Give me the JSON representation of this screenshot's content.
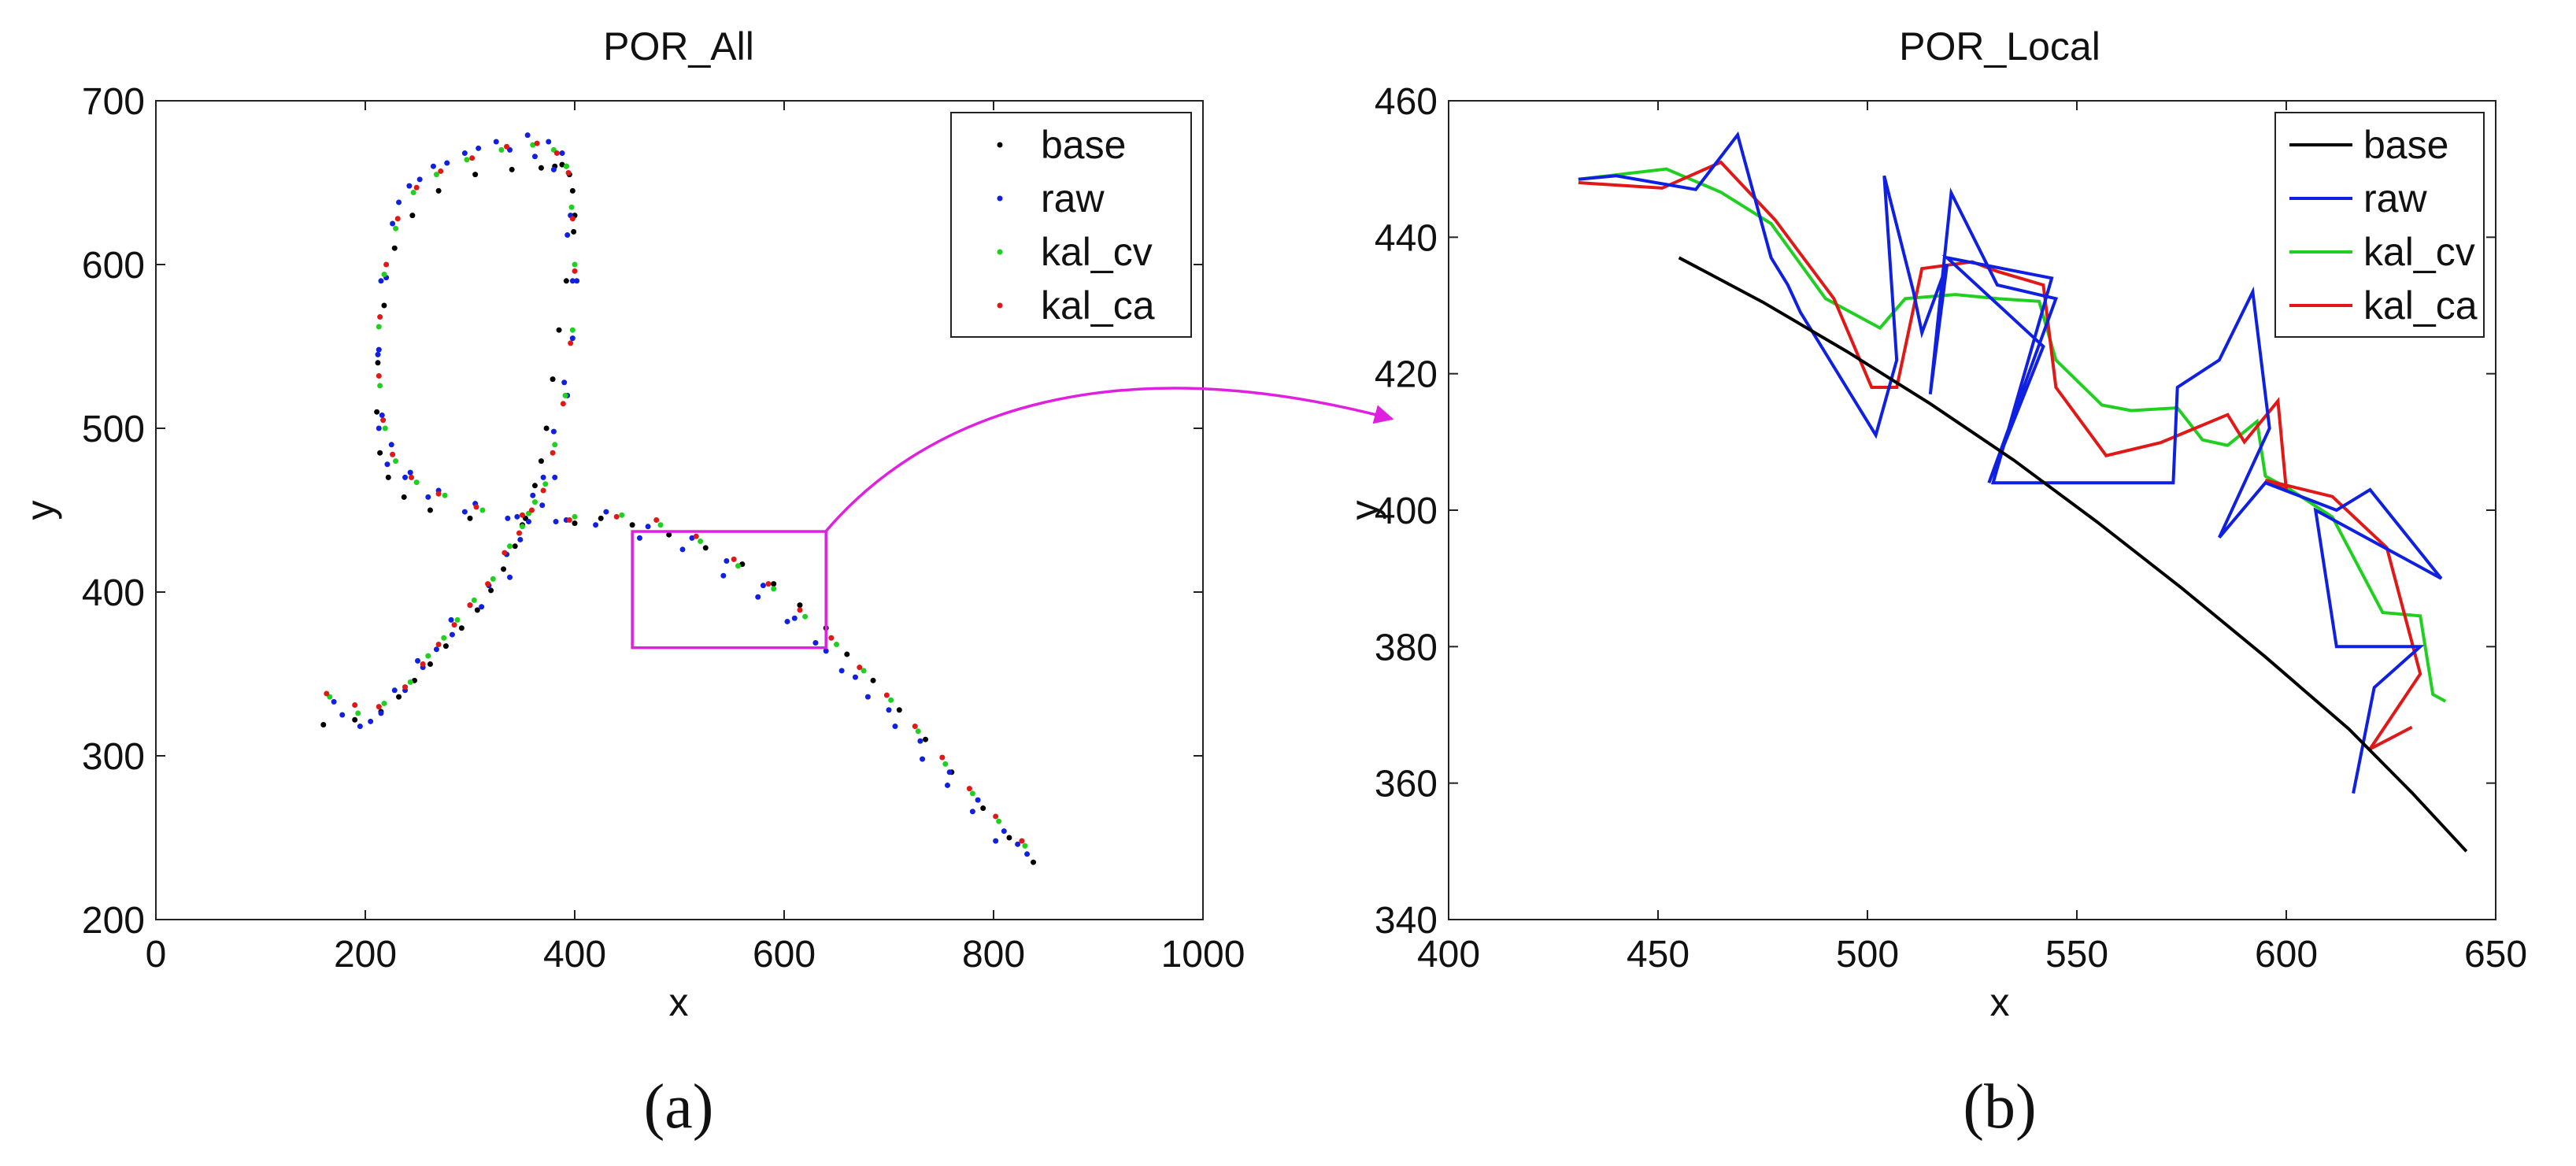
{
  "figure": {
    "panel_a_caption": "(a)",
    "panel_b_caption": "(b)",
    "zoom_color": "#e020e0"
  },
  "chart_data": [
    {
      "id": "por_all",
      "type": "scatter",
      "title": "POR_All",
      "xlabel": "x",
      "ylabel": "y",
      "xlim": [
        0,
        1000
      ],
      "ylim": [
        200,
        700
      ],
      "xticks": [
        0,
        200,
        400,
        600,
        800,
        1000
      ],
      "yticks": [
        200,
        300,
        400,
        500,
        600,
        700
      ],
      "grid": false,
      "legend_position": "top-right",
      "zoom_box": {
        "x": [
          455,
          640
        ],
        "y": [
          366,
          437
        ]
      },
      "series": [
        {
          "name": "base",
          "color": "#000000",
          "x": [
            160,
            190,
            215,
            232,
            247,
            262,
            277,
            292,
            307,
            320,
            332,
            343,
            353,
            362,
            368,
            373,
            379,
            385,
            392,
            399,
            400,
            398,
            395,
            392,
            388,
            381,
            368,
            340,
            305,
            270,
            245,
            228,
            218,
            212,
            211,
            214,
            222,
            237,
            262,
            300,
            350,
            400,
            425,
            455,
            490,
            525,
            560,
            590,
            615,
            640,
            660,
            685,
            710,
            735,
            760,
            790,
            815,
            838
          ],
          "y": [
            319,
            322,
            327,
            336,
            346,
            356,
            367,
            378,
            389,
            401,
            414,
            428,
            445,
            465,
            480,
            500,
            530,
            560,
            590,
            620,
            630,
            645,
            655,
            660,
            661,
            660,
            659,
            658,
            655,
            645,
            630,
            610,
            575,
            540,
            510,
            485,
            470,
            458,
            450,
            445,
            441,
            442,
            445,
            441,
            435,
            427,
            417,
            405,
            392,
            378,
            362,
            346,
            328,
            310,
            290,
            268,
            250,
            235
          ]
        },
        {
          "name": "raw",
          "color": "#1020e0",
          "x": [
            170,
            195,
            215,
            238,
            250,
            268,
            282,
            300,
            318,
            335,
            348,
            360,
            370,
            380,
            390,
            398,
            402,
            396,
            388,
            375,
            355,
            325,
            295,
            265,
            242,
            226,
            215,
            212,
            216,
            225,
            243,
            270,
            305,
            345,
            392,
            430,
            470,
            512,
            545,
            580,
            610,
            640,
            668,
            700,
            730,
            758,
            785,
            810,
            832,
            178,
            205,
            228,
            255,
            283,
            311,
            338,
            356,
            369,
            381,
            393,
            398,
            393,
            380,
            362,
            338,
            308,
            278,
            252,
            232,
            220,
            213,
            213,
            221,
            238,
            260,
            295,
            336,
            382,
            420,
            462,
            503,
            542,
            575,
            603,
            630,
            655,
            680,
            706,
            732,
            756,
            780,
            802,
            823
          ],
          "y": [
            333,
            318,
            326,
            340,
            358,
            365,
            383,
            392,
            404,
            423,
            432,
            459,
            470,
            498,
            528,
            555,
            590,
            630,
            668,
            675,
            679,
            675,
            668,
            660,
            648,
            625,
            590,
            545,
            508,
            490,
            473,
            462,
            454,
            446,
            444,
            449,
            440,
            433,
            419,
            404,
            384,
            364,
            348,
            328,
            309,
            290,
            273,
            254,
            240,
            325,
            321,
            340,
            354,
            374,
            391,
            409,
            443,
            453,
            470,
            520,
            590,
            618,
            658,
            666,
            670,
            671,
            662,
            652,
            638,
            592,
            548,
            500,
            478,
            470,
            458,
            449,
            445,
            443,
            441,
            433,
            426,
            410,
            397,
            382,
            369,
            352,
            336,
            318,
            298,
            282,
            266,
            248,
            246
          ]
        },
        {
          "name": "kal_cv",
          "color": "#20d020",
          "x": [
            166,
            193,
            218,
            243,
            260,
            275,
            288,
            304,
            322,
            338,
            350,
            362,
            372,
            381,
            391,
            398,
            400,
            397,
            392,
            380,
            360,
            330,
            297,
            268,
            246,
            229,
            218,
            213,
            214,
            219,
            229,
            249,
            276,
            312,
            356,
            400,
            445,
            482,
            520,
            556,
            590,
            620,
            650,
            676,
            702,
            728,
            754,
            780,
            805,
            830
          ],
          "y": [
            336,
            326,
            332,
            345,
            361,
            372,
            383,
            395,
            408,
            428,
            440,
            455,
            466,
            490,
            520,
            560,
            600,
            635,
            660,
            670,
            673,
            670,
            664,
            655,
            644,
            622,
            594,
            562,
            526,
            500,
            480,
            467,
            459,
            450,
            448,
            446,
            447,
            441,
            431,
            416,
            402,
            385,
            368,
            352,
            334,
            315,
            295,
            277,
            260,
            245
          ]
        },
        {
          "name": "kal_ca",
          "color": "#e01818",
          "x": [
            163,
            190,
            213,
            238,
            255,
            270,
            285,
            300,
            317,
            333,
            347,
            359,
            370,
            379,
            389,
            396,
            400,
            398,
            394,
            383,
            364,
            335,
            302,
            272,
            249,
            231,
            220,
            214,
            213,
            217,
            226,
            244,
            270,
            306,
            350,
            395,
            440,
            478,
            516,
            552,
            585,
            615,
            645,
            672,
            698,
            725,
            751,
            777,
            802,
            827
          ],
          "y": [
            338,
            331,
            330,
            342,
            356,
            368,
            380,
            392,
            405,
            424,
            436,
            450,
            462,
            485,
            515,
            552,
            596,
            628,
            656,
            668,
            674,
            672,
            665,
            657,
            647,
            628,
            600,
            568,
            532,
            505,
            484,
            470,
            460,
            452,
            447,
            444,
            446,
            444,
            434,
            420,
            405,
            389,
            372,
            354,
            337,
            318,
            299,
            280,
            263,
            248
          ]
        }
      ]
    },
    {
      "id": "por_local",
      "type": "line",
      "title": "POR_Local",
      "xlabel": "x",
      "ylabel": "y",
      "xlim": [
        400,
        650
      ],
      "ylim": [
        340,
        460
      ],
      "xticks": [
        400,
        450,
        500,
        550,
        600,
        650
      ],
      "yticks": [
        340,
        360,
        380,
        400,
        420,
        440,
        460
      ],
      "grid": false,
      "legend_position": "top-right",
      "series": [
        {
          "name": "base",
          "color": "#000000",
          "x": [
            455,
            475,
            495,
            515,
            535,
            555,
            575,
            595,
            615,
            630,
            643
          ],
          "y": [
            437,
            430.5,
            423.3,
            415.6,
            407.3,
            398.2,
            388.6,
            378.5,
            367.9,
            358.6,
            350
          ]
        },
        {
          "name": "raw",
          "color": "#1020e0",
          "x": [
            431,
            440,
            459,
            469,
            477,
            481,
            484,
            502,
            507,
            504,
            511,
            513,
            519,
            515,
            520,
            531,
            545,
            529,
            542,
            519,
            544,
            530,
            573,
            574,
            584,
            592,
            596,
            584,
            595,
            612,
            620,
            637,
            607,
            612,
            632,
            621,
            616
          ],
          "y": [
            448.5,
            449,
            447,
            455,
            437,
            433,
            429,
            411,
            422,
            449,
            432,
            426,
            436,
            417,
            446.5,
            433,
            431,
            404,
            424,
            437,
            434,
            404,
            404,
            418,
            422,
            432,
            412,
            396,
            404,
            400,
            403,
            390,
            400,
            380,
            380,
            374,
            358.5
          ]
        },
        {
          "name": "kal_cv",
          "color": "#20d020",
          "x": [
            431,
            452,
            465,
            477,
            490,
            503,
            509,
            521,
            531,
            541,
            545,
            556,
            563,
            574,
            580,
            586,
            593,
            595,
            601,
            611,
            623,
            632,
            635,
            638
          ],
          "y": [
            448.5,
            450,
            446.6,
            442,
            431,
            426.7,
            431,
            431.6,
            431,
            430.6,
            422,
            415.4,
            414.6,
            415,
            410.3,
            409.5,
            413,
            405,
            403,
            399,
            385,
            384.5,
            373,
            372
          ]
        },
        {
          "name": "kal_ca",
          "color": "#e01818",
          "x": [
            431,
            451,
            465,
            478,
            492,
            501,
            507,
            513,
            525,
            531,
            542,
            545,
            557,
            570,
            586,
            590,
            598,
            600,
            595,
            611,
            624,
            632,
            620,
            630
          ],
          "y": [
            448,
            447.2,
            451,
            442.5,
            431,
            418,
            418,
            435.4,
            436.4,
            435,
            433,
            418,
            408,
            409.9,
            414,
            410,
            416,
            403,
            404.4,
            402,
            394.5,
            376,
            365,
            368.2
          ]
        }
      ]
    }
  ]
}
